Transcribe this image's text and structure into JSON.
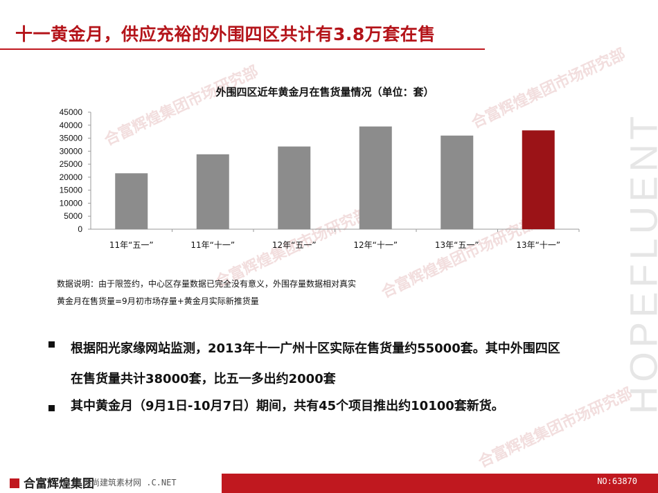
{
  "title": "十一黄金月，供应充裕的外围四区共计有3.8万套在售",
  "brand_vertical": "HOPEFLUENT",
  "watermark": "合富辉煌集团市场研究部",
  "chart_data": {
    "type": "bar",
    "title": "外围四区近年黄金月在售货量情况（单位：套）",
    "categories": [
      "11年“五一”",
      "11年“十一”",
      "12年“五一”",
      "12年“十一”",
      "13年“五一”",
      "13年“十一”"
    ],
    "values": [
      21500,
      28800,
      31800,
      39500,
      36000,
      38000
    ],
    "ylim": [
      0,
      45000
    ],
    "yticks": [
      0,
      5000,
      10000,
      15000,
      20000,
      25000,
      30000,
      35000,
      40000,
      45000
    ],
    "bar_color": "#8c8c8c",
    "highlight_color": "#9b1317",
    "highlight_index": 5,
    "grid": false
  },
  "notes": [
    "数据说明：由于限签约，中心区存量数据已完全没有意义，外围存量数据相对真实",
    "黄金月在售货量=9月初市场存量+黄金月实际新推货量"
  ],
  "bullets": [
    "根据阳光家缘网站监测，2013年十一广州十区实际在售货量约55000套。其中外围四区在售货量共计38000套，比五一多出约2000套",
    "其中黄金月（9月1日-10月7日）期间，共有45个项目推出约10100套新货。"
  ],
  "footer": {
    "logo_text": "合富辉煌集团",
    "url_text": "典尚建筑素材网 .C.NET",
    "id_text": "NO:63870"
  }
}
